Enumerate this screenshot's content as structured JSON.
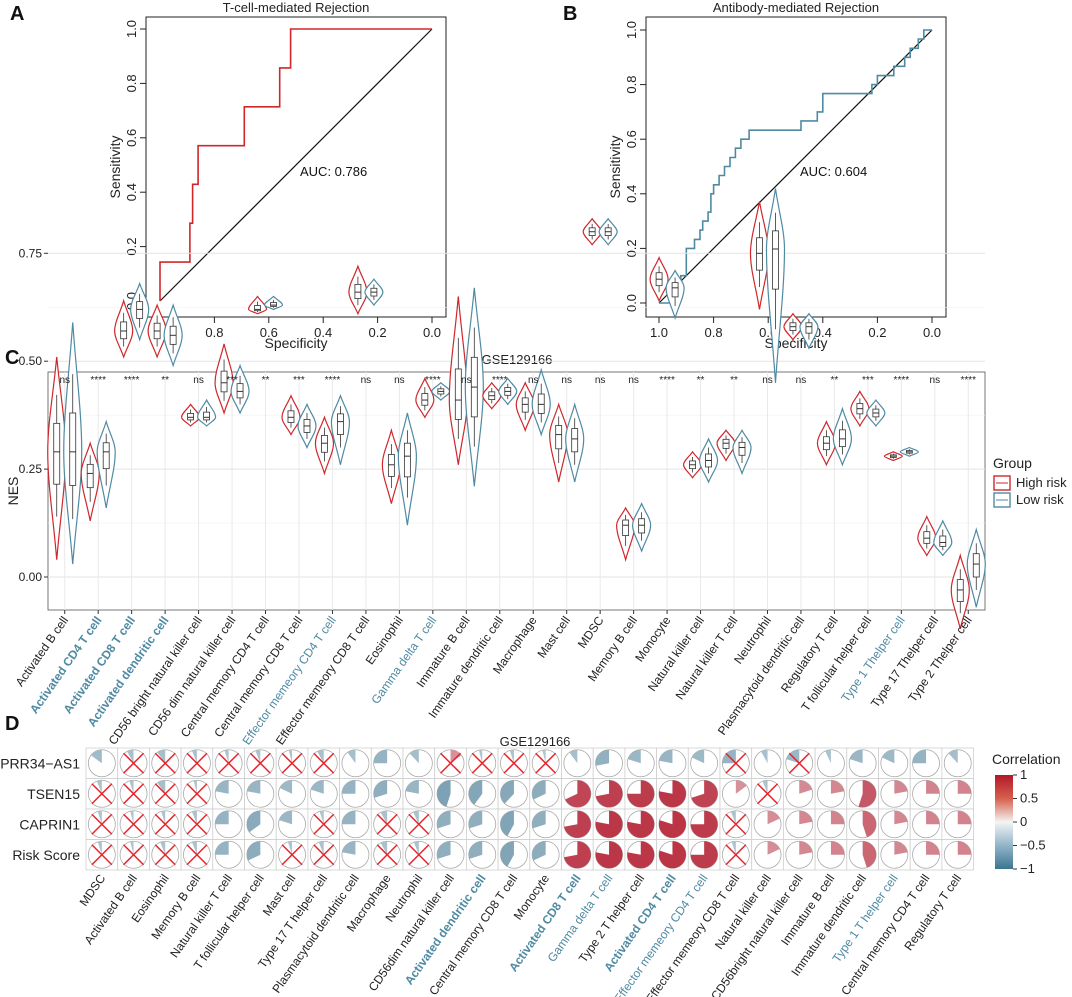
{
  "panel_labels": [
    "A",
    "B",
    "C",
    "D"
  ],
  "chart_data": [
    {
      "panel": "A",
      "type": "line",
      "title": "T-cell-mediated Rejection",
      "xlabel": "Specificity",
      "ylabel": "Sensitivity",
      "xlim": [
        1.0,
        0.0
      ],
      "ylim": [
        0.0,
        1.0
      ],
      "xticks": [
        "1.0",
        "0.8",
        "0.6",
        "0.4",
        "0.2",
        "0.0"
      ],
      "yticks": [
        "0.0",
        "0.2",
        "0.4",
        "0.6",
        "0.8",
        "1.0"
      ],
      "auc_label": "AUC: 0.786",
      "color": "#d0272b",
      "roc": [
        [
          1.0,
          0.0
        ],
        [
          1.0,
          0.143
        ],
        [
          0.89,
          0.143
        ],
        [
          0.89,
          0.286
        ],
        [
          0.88,
          0.286
        ],
        [
          0.88,
          0.429
        ],
        [
          0.86,
          0.429
        ],
        [
          0.86,
          0.571
        ],
        [
          0.69,
          0.571
        ],
        [
          0.69,
          0.714
        ],
        [
          0.56,
          0.714
        ],
        [
          0.56,
          0.857
        ],
        [
          0.52,
          0.857
        ],
        [
          0.52,
          1.0
        ],
        [
          0.0,
          1.0
        ]
      ]
    },
    {
      "panel": "B",
      "type": "line",
      "title": "Antibody-mediated Rejection",
      "xlabel": "Specificity",
      "ylabel": "Sensitivity",
      "xlim": [
        1.0,
        0.0
      ],
      "ylim": [
        0.0,
        1.0
      ],
      "xticks": [
        "1.0",
        "0.8",
        "0.6",
        "0.4",
        "0.2",
        "0.0"
      ],
      "yticks": [
        "0.0",
        "0.2",
        "0.4",
        "0.6",
        "0.8",
        "1.0"
      ],
      "auc_label": "AUC: 0.604",
      "color": "#4f8aa3",
      "roc": [
        [
          1.0,
          0.0
        ],
        [
          0.94,
          0.0
        ],
        [
          0.94,
          0.033
        ],
        [
          0.92,
          0.033
        ],
        [
          0.92,
          0.1
        ],
        [
          0.9,
          0.1
        ],
        [
          0.9,
          0.2
        ],
        [
          0.87,
          0.2
        ],
        [
          0.87,
          0.233
        ],
        [
          0.85,
          0.233
        ],
        [
          0.85,
          0.267
        ],
        [
          0.84,
          0.267
        ],
        [
          0.84,
          0.3
        ],
        [
          0.82,
          0.3
        ],
        [
          0.82,
          0.333
        ],
        [
          0.81,
          0.333
        ],
        [
          0.81,
          0.4
        ],
        [
          0.8,
          0.4
        ],
        [
          0.8,
          0.433
        ],
        [
          0.78,
          0.433
        ],
        [
          0.78,
          0.467
        ],
        [
          0.76,
          0.467
        ],
        [
          0.76,
          0.5
        ],
        [
          0.74,
          0.5
        ],
        [
          0.74,
          0.533
        ],
        [
          0.72,
          0.533
        ],
        [
          0.72,
          0.567
        ],
        [
          0.7,
          0.567
        ],
        [
          0.7,
          0.6
        ],
        [
          0.67,
          0.6
        ],
        [
          0.67,
          0.633
        ],
        [
          0.48,
          0.633
        ],
        [
          0.48,
          0.667
        ],
        [
          0.42,
          0.667
        ],
        [
          0.42,
          0.7
        ],
        [
          0.4,
          0.7
        ],
        [
          0.4,
          0.767
        ],
        [
          0.22,
          0.767
        ],
        [
          0.22,
          0.8
        ],
        [
          0.2,
          0.8
        ],
        [
          0.2,
          0.833
        ],
        [
          0.14,
          0.833
        ],
        [
          0.14,
          0.867
        ],
        [
          0.1,
          0.867
        ],
        [
          0.1,
          0.9
        ],
        [
          0.08,
          0.9
        ],
        [
          0.08,
          0.933
        ],
        [
          0.05,
          0.933
        ],
        [
          0.05,
          0.967
        ],
        [
          0.03,
          0.967
        ],
        [
          0.03,
          1.0
        ],
        [
          0.0,
          1.0
        ]
      ]
    },
    {
      "panel": "C",
      "type": "violin",
      "title": "GSE129166",
      "ylabel": "NES",
      "ylim": [
        -0.12,
        0.9
      ],
      "yticks": [
        "0.00",
        "0.25",
        "0.50",
        "0.75"
      ],
      "legend_title": "Group",
      "groups": [
        "High risk",
        "Low risk"
      ],
      "group_colors": [
        "#d0272b",
        "#4f8aa3"
      ],
      "categories": [
        "Activated B cell",
        "Activated CD4 T cell",
        "Activated CD8 T cell",
        "Activated dendritic cell",
        "CD56 bright natural killer cell",
        "CD56 dim natural killer cell",
        "Central memory CD4 T cell",
        "Central memory CD8 T cell",
        "Effector memeory CD4 T cell",
        "Effector memeory CD8 T cell",
        "Eosinophil",
        "Gamma delta T cell",
        "Immature B cell",
        "Immature dendritic cell",
        "Macrophage",
        "Mast cell",
        "MDSC",
        "Memory B cell",
        "Monocyte",
        "Natural killer cell",
        "Natural killer T cell",
        "Neutrophil",
        "Plasmacytoid dendritic cell",
        "Regulatory T cell",
        "T follicular helper cell",
        "Type 1 Thelper cell",
        "Type 17 Thelper cell",
        "Type 2 Thelper cell"
      ],
      "highlight": [
        "none",
        "bold",
        "bold",
        "bold",
        "none",
        "none",
        "none",
        "none",
        "plain",
        "none",
        "none",
        "plain",
        "none",
        "none",
        "none",
        "none",
        "none",
        "none",
        "none",
        "none",
        "none",
        "none",
        "none",
        "none",
        "none",
        "plain",
        "none",
        "none"
      ],
      "significance": [
        "ns",
        "****",
        "****",
        "**",
        "ns",
        "***",
        "**",
        "***",
        "****",
        "ns",
        "ns",
        "****",
        "ns",
        "****",
        "ns",
        "ns",
        "ns",
        "ns",
        "****",
        "**",
        "**",
        "ns",
        "ns",
        "**",
        "***",
        "****",
        "ns",
        "****"
      ],
      "high_median": [
        0.29,
        0.24,
        0.57,
        0.57,
        0.37,
        0.45,
        0.62,
        0.37,
        0.31,
        0.66,
        0.26,
        0.41,
        0.41,
        0.42,
        0.4,
        0.33,
        0.8,
        0.12,
        0.69,
        0.26,
        0.31,
        0.75,
        0.58,
        0.31,
        0.39,
        0.28,
        0.09,
        -0.03
      ],
      "low_median": [
        0.29,
        0.29,
        0.62,
        0.56,
        0.37,
        0.43,
        0.63,
        0.35,
        0.36,
        0.66,
        0.28,
        0.43,
        0.44,
        0.43,
        0.4,
        0.32,
        0.8,
        0.12,
        0.67,
        0.27,
        0.3,
        0.76,
        0.58,
        0.32,
        0.38,
        0.29,
        0.08,
        0.03
      ],
      "high_min": [
        0.04,
        0.13,
        0.51,
        0.51,
        0.35,
        0.38,
        0.61,
        0.33,
        0.24,
        0.61,
        0.17,
        0.37,
        0.26,
        0.39,
        0.34,
        0.22,
        0.77,
        0.04,
        0.64,
        0.23,
        0.27,
        0.62,
        0.55,
        0.26,
        0.35,
        0.27,
        0.05,
        -0.12
      ],
      "high_max": [
        0.51,
        0.31,
        0.64,
        0.63,
        0.4,
        0.54,
        0.65,
        0.42,
        0.37,
        0.72,
        0.34,
        0.46,
        0.65,
        0.45,
        0.45,
        0.4,
        0.83,
        0.16,
        0.74,
        0.29,
        0.34,
        0.87,
        0.61,
        0.36,
        0.43,
        0.29,
        0.14,
        0.05
      ],
      "low_min": [
        0.03,
        0.16,
        0.55,
        0.49,
        0.35,
        0.38,
        0.62,
        0.3,
        0.26,
        0.63,
        0.12,
        0.41,
        0.21,
        0.4,
        0.33,
        0.22,
        0.77,
        0.06,
        0.6,
        0.22,
        0.24,
        0.45,
        0.53,
        0.26,
        0.35,
        0.28,
        0.05,
        -0.07
      ],
      "low_max": [
        0.59,
        0.36,
        0.68,
        0.63,
        0.41,
        0.49,
        0.65,
        0.4,
        0.42,
        0.69,
        0.38,
        0.45,
        0.67,
        0.46,
        0.48,
        0.4,
        0.83,
        0.17,
        0.71,
        0.32,
        0.34,
        0.9,
        0.61,
        0.39,
        0.41,
        0.3,
        0.13,
        0.11
      ]
    },
    {
      "panel": "D",
      "type": "heatmap",
      "title": "GSE129166",
      "legend_title": "Correlation",
      "legend_ticks": [
        "1",
        "0.5",
        "0",
        "−0.5",
        "−1"
      ],
      "legend_tick_values": [
        1,
        0.5,
        0,
        -0.5,
        -1
      ],
      "rows": [
        "PRR34−AS1",
        "TSEN15",
        "CAPRIN1",
        "Risk Score"
      ],
      "columns": [
        "MDSC",
        "Activated B cell",
        "Eosinophil",
        "Memory B cell",
        "Natural killer T cell",
        "T follicular helper cell",
        "Mast cell",
        "Type 17 T helper cell",
        "Plasmacytoid dendritic cell",
        "Macrophage",
        "Neutrophil",
        "CD56dim natural killer cell",
        "Activated dendritic cell",
        "Central memory CD8 T cell",
        "Monocyte",
        "Activated CD8 T cell",
        "Gamma delta T cell",
        "Type 2 T helper cell",
        "Activated CD4 T cell",
        "Effector memeory CD4 T cell",
        "Effector memeory CD8 T cell",
        "Natural killer cell",
        "CD56bright natural killer cell",
        "Immature  B cell",
        "Immature dendritic cell",
        "Type 1 T helper cell",
        "Central memory CD4 T cell",
        "Regulatory T cell"
      ],
      "column_highlight": [
        "none",
        "none",
        "none",
        "none",
        "none",
        "none",
        "none",
        "none",
        "none",
        "none",
        "none",
        "none",
        "bold",
        "none",
        "none",
        "bold",
        "plain",
        "none",
        "bold",
        "plain",
        "none",
        "none",
        "none",
        "none",
        "none",
        "plain",
        "none",
        "none"
      ],
      "values": [
        [
          -0.15,
          -0.08,
          -0.1,
          -0.06,
          -0.05,
          -0.06,
          -0.04,
          -0.08,
          -0.1,
          -0.25,
          -0.12,
          0.15,
          -0.04,
          -0.05,
          -0.04,
          -0.1,
          -0.28,
          -0.2,
          -0.22,
          -0.18,
          -0.25,
          -0.08,
          -0.2,
          -0.07,
          -0.2,
          -0.18,
          -0.25,
          -0.12
        ],
        [
          -0.06,
          -0.05,
          -0.1,
          -0.04,
          -0.22,
          -0.22,
          -0.18,
          -0.2,
          -0.25,
          -0.3,
          -0.22,
          -0.45,
          -0.4,
          -0.38,
          -0.32,
          0.68,
          0.72,
          0.75,
          0.78,
          0.7,
          0.15,
          -0.06,
          0.2,
          0.22,
          0.55,
          0.22,
          0.25,
          0.25
        ],
        [
          -0.05,
          -0.04,
          -0.05,
          -0.06,
          -0.25,
          -0.35,
          -0.2,
          -0.05,
          -0.25,
          -0.08,
          -0.07,
          -0.3,
          -0.3,
          -0.42,
          -0.3,
          0.72,
          0.78,
          0.78,
          0.8,
          0.75,
          -0.06,
          0.18,
          0.22,
          0.25,
          0.45,
          0.22,
          0.25,
          0.25
        ],
        [
          -0.05,
          -0.04,
          -0.06,
          -0.06,
          -0.25,
          -0.32,
          -0.05,
          -0.06,
          -0.22,
          -0.08,
          -0.06,
          -0.3,
          -0.3,
          -0.42,
          -0.32,
          0.72,
          0.78,
          0.78,
          0.8,
          0.75,
          -0.05,
          0.18,
          0.22,
          0.25,
          0.45,
          0.22,
          0.25,
          0.25
        ]
      ],
      "non_significant": [
        [
          false,
          true,
          true,
          true,
          true,
          true,
          true,
          true,
          false,
          false,
          false,
          true,
          true,
          true,
          true,
          false,
          false,
          false,
          false,
          false,
          true,
          false,
          true,
          false,
          false,
          false,
          false,
          false
        ],
        [
          true,
          true,
          true,
          true,
          false,
          false,
          false,
          false,
          false,
          false,
          false,
          false,
          false,
          false,
          false,
          false,
          false,
          false,
          false,
          false,
          false,
          true,
          false,
          false,
          false,
          false,
          false,
          false
        ],
        [
          true,
          true,
          true,
          true,
          false,
          false,
          false,
          true,
          false,
          true,
          true,
          false,
          false,
          false,
          false,
          false,
          false,
          false,
          false,
          false,
          true,
          false,
          false,
          false,
          false,
          false,
          false,
          false
        ],
        [
          true,
          true,
          true,
          true,
          false,
          false,
          true,
          true,
          false,
          true,
          true,
          false,
          false,
          false,
          false,
          false,
          false,
          false,
          false,
          false,
          true,
          false,
          false,
          false,
          false,
          false,
          false,
          false
        ]
      ]
    }
  ]
}
